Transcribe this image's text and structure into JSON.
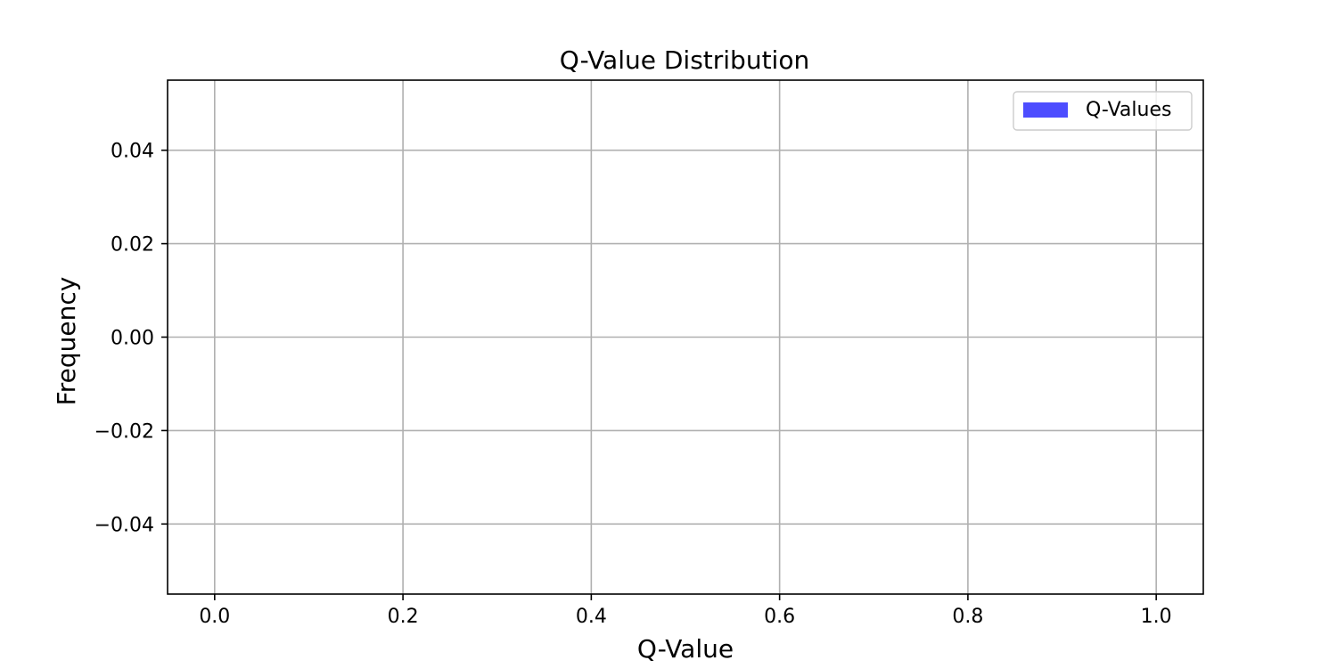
{
  "chart_data": {
    "type": "bar",
    "title": "Q-Value Distribution",
    "xlabel": "Q-Value",
    "ylabel": "Frequency",
    "xlim": [
      -0.05,
      1.05
    ],
    "ylim": [
      -0.055,
      0.055
    ],
    "xticks": [
      0.0,
      0.2,
      0.4,
      0.6,
      0.8,
      1.0
    ],
    "xtick_labels": [
      "0.0",
      "0.2",
      "0.4",
      "0.6",
      "0.8",
      "1.0"
    ],
    "yticks": [
      -0.04,
      -0.02,
      0.0,
      0.02,
      0.04
    ],
    "ytick_labels": [
      "−0.04",
      "−0.02",
      "0.00",
      "0.02",
      "0.04"
    ],
    "grid": true,
    "legend_position": "top-right",
    "series": [
      {
        "name": "Q-Values",
        "color": "#4d4dff",
        "values": []
      }
    ]
  }
}
